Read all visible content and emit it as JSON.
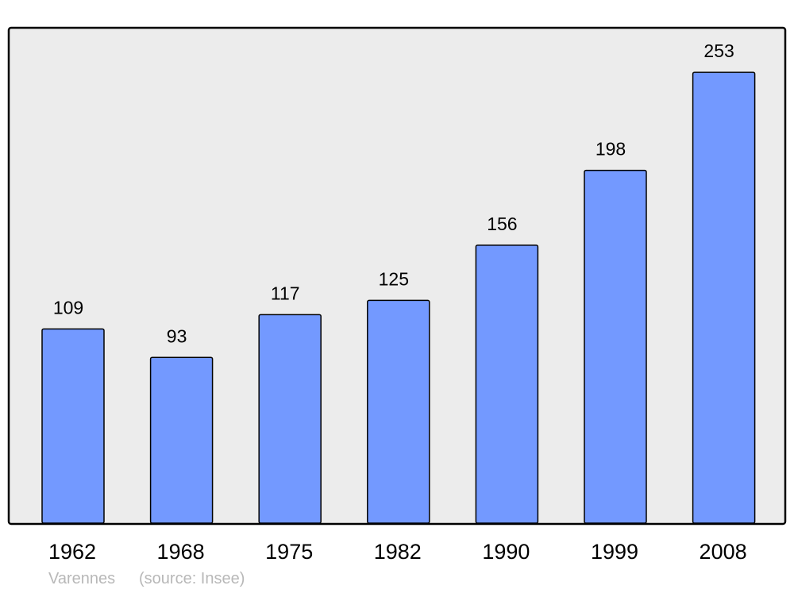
{
  "chart_data": {
    "type": "bar",
    "categories": [
      "1962",
      "1968",
      "1975",
      "1982",
      "1990",
      "1999",
      "2008"
    ],
    "values": [
      109,
      93,
      117,
      125,
      156,
      198,
      253
    ],
    "title": "",
    "xlabel": "",
    "ylabel": "",
    "ylim": [
      0,
      278
    ],
    "grid": false,
    "colors": {
      "bar": "#7399ff",
      "background": "#ececec",
      "border": "#000000"
    }
  },
  "caption": {
    "place": "Varennes",
    "source": "(source: Insee)"
  }
}
